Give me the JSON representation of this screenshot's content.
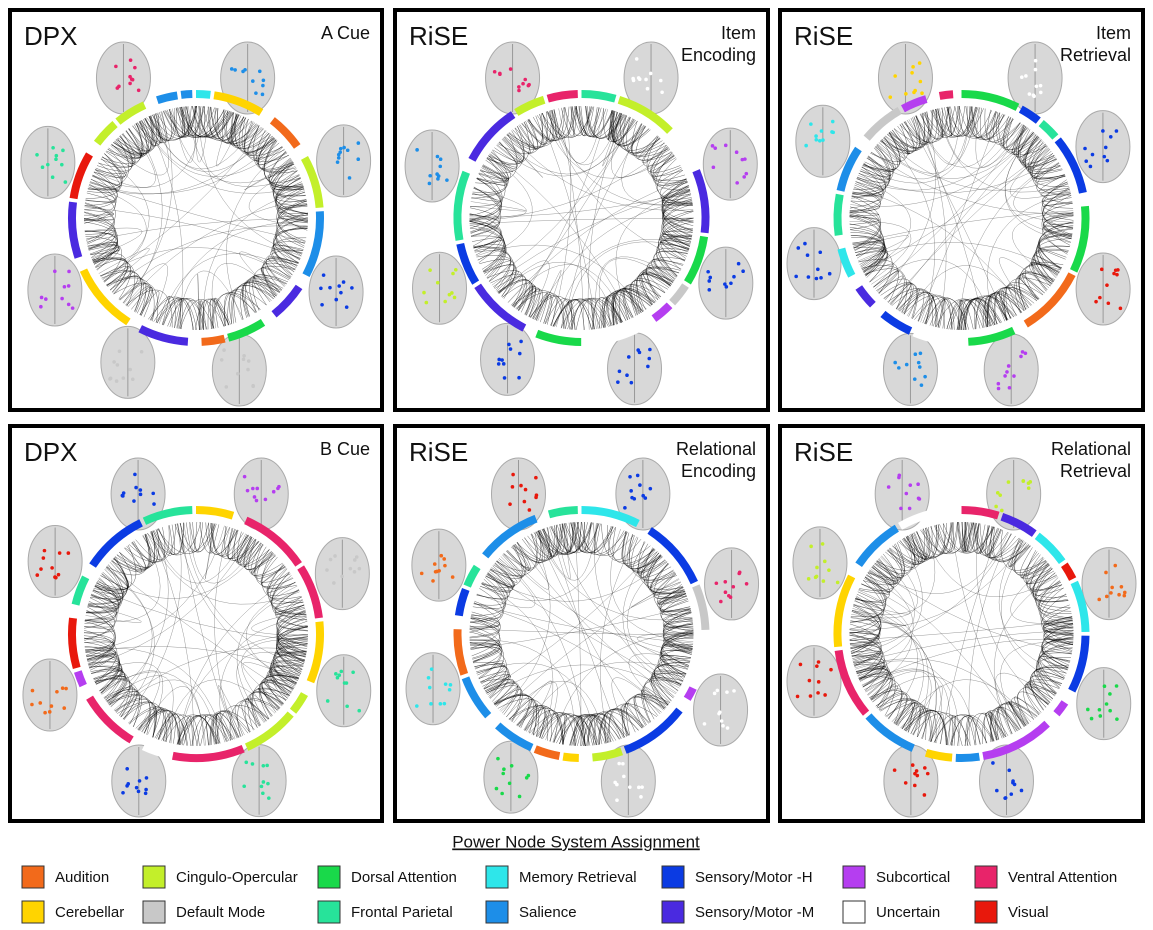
{
  "panels": [
    {
      "study": "DPX",
      "condition": [
        "A Cue"
      ]
    },
    {
      "study": "RiSE",
      "condition": [
        "Item",
        "Encoding"
      ]
    },
    {
      "study": "RiSE",
      "condition": [
        "Item",
        "Retrieval"
      ]
    },
    {
      "study": "DPX",
      "condition": [
        "B Cue"
      ]
    },
    {
      "study": "RiSE",
      "condition": [
        "Relational",
        "Encoding"
      ]
    },
    {
      "study": "RiSE",
      "condition": [
        "Relational",
        "Retrieval"
      ]
    }
  ],
  "legend": {
    "title": "Power Node System Assignment",
    "entries": [
      {
        "name": "Audition",
        "color": "#f26a1b"
      },
      {
        "name": "Cerebellar",
        "color": "#ffd400"
      },
      {
        "name": "Cingulo-Opercular",
        "color": "#c3ef2a"
      },
      {
        "name": "Default Mode",
        "color": "#c8c8c8"
      },
      {
        "name": "Dorsal Attention",
        "color": "#19d94a"
      },
      {
        "name": "Frontal Parietal",
        "color": "#27e39a"
      },
      {
        "name": "Memory Retrieval",
        "color": "#2ee6ea"
      },
      {
        "name": "Salience",
        "color": "#1d8ee8"
      },
      {
        "name": "Sensory/Motor -H",
        "color": "#0b3be3"
      },
      {
        "name": "Sensory/Motor -M",
        "color": "#4a2ae0"
      },
      {
        "name": "Subcortical",
        "color": "#b53ef0"
      },
      {
        "name": "Uncertain",
        "color": "#ffffff"
      },
      {
        "name": "Ventral Attention",
        "color": "#e8246a"
      },
      {
        "name": "Visual",
        "color": "#e8180c"
      }
    ]
  }
}
